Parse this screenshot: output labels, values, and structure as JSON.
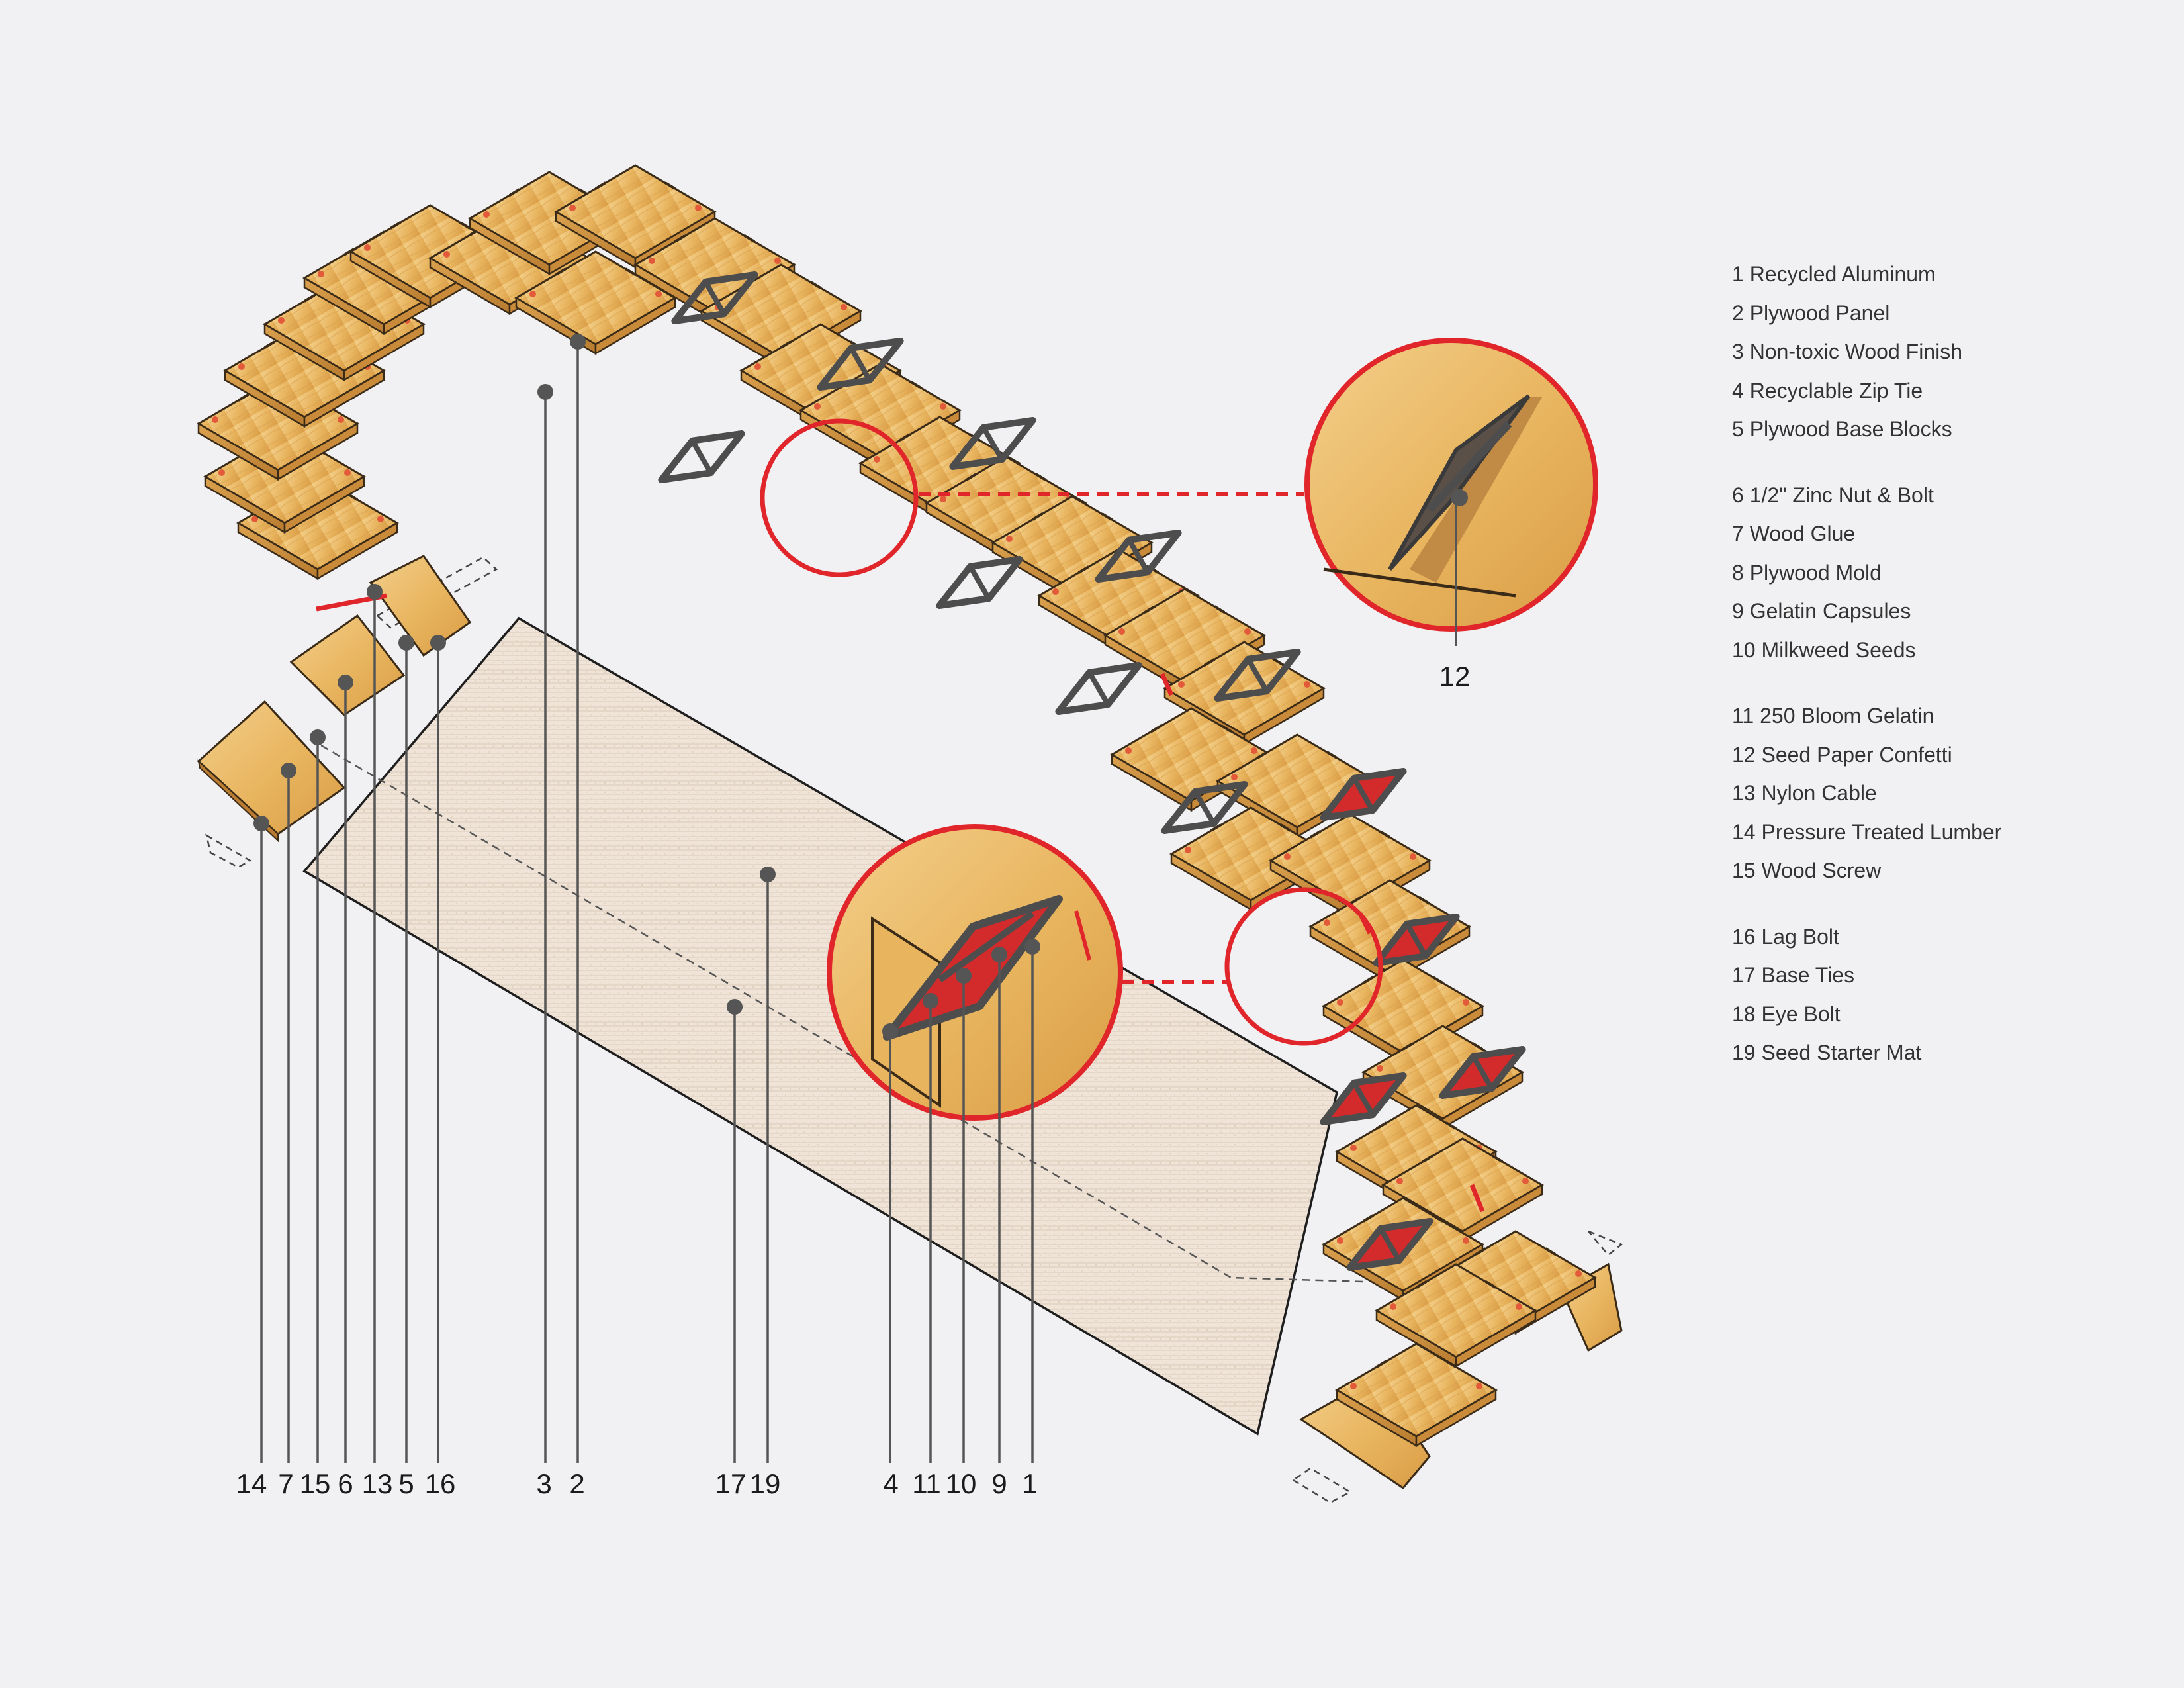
{
  "legend": {
    "groups": [
      [
        {
          "num": "1",
          "label": "Recycled Aluminum"
        },
        {
          "num": "2",
          "label": "Plywood Panel"
        },
        {
          "num": "3",
          "label": "Non-toxic Wood Finish"
        },
        {
          "num": "4",
          "label": "Recyclable Zip Tie"
        },
        {
          "num": "5",
          "label": "Plywood Base Blocks"
        }
      ],
      [
        {
          "num": "6",
          "label": "1/2\" Zinc Nut & Bolt"
        },
        {
          "num": "7",
          "label": "Wood Glue"
        },
        {
          "num": "8",
          "label": "Plywood Mold"
        },
        {
          "num": "9",
          "label": "Gelatin Capsules"
        },
        {
          "num": "10",
          "label": "Milkweed Seeds"
        }
      ],
      [
        {
          "num": "11",
          "label": "250 Bloom Gelatin"
        },
        {
          "num": "12",
          "label": "Seed Paper Confetti"
        },
        {
          "num": "13",
          "label": "Nylon Cable"
        },
        {
          "num": "14",
          "label": "Pressure Treated Lumber"
        },
        {
          "num": "15",
          "label": "Wood Screw"
        }
      ],
      [
        {
          "num": "16",
          "label": "Lag Bolt"
        },
        {
          "num": "17",
          "label": "Base Ties"
        },
        {
          "num": "18",
          "label": "Eye Bolt"
        },
        {
          "num": "19",
          "label": "Seed Starter Mat"
        }
      ]
    ]
  },
  "callouts": [
    "14",
    "7",
    "15",
    "6",
    "13",
    "5",
    "16",
    "3",
    "2",
    "17",
    "19",
    "4",
    "11",
    "10",
    "9",
    "1",
    "12"
  ],
  "colors": {
    "background": "#f1f1f3",
    "plywood": "#e8b45e",
    "plywood_edge": "#3a2a18",
    "highlight_red": "#e0262b",
    "leader": "#444444",
    "mat": "#ede0d2"
  }
}
